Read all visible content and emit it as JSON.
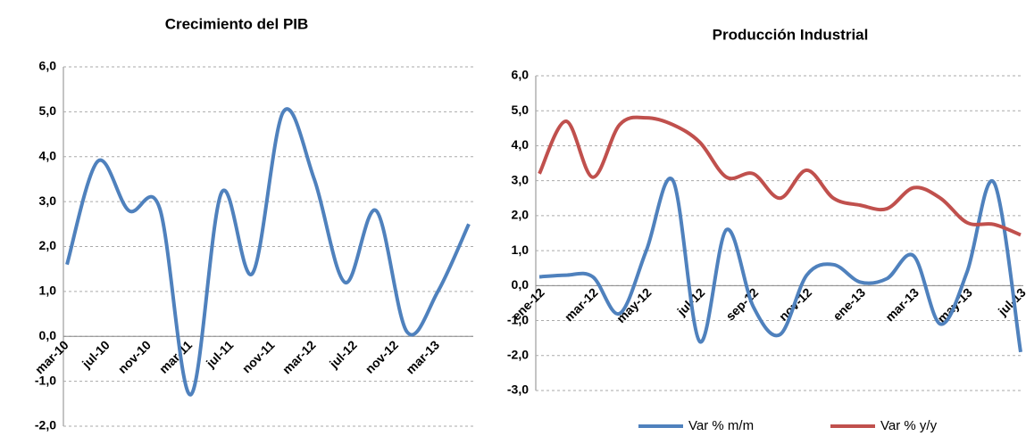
{
  "chart_data": [
    {
      "type": "line",
      "title": "Crecimiento del PIB",
      "color": "#4f81bd",
      "grid": true,
      "negative_tick_color": "#c00000",
      "x": [
        "2010-03",
        "2010-06",
        "2010-09",
        "2010-12",
        "2011-03",
        "2011-06",
        "2011-09",
        "2011-12",
        "2012-03",
        "2012-06",
        "2012-09",
        "2012-12",
        "2013-03",
        "2013-06"
      ],
      "values": [
        1.6,
        3.9,
        2.8,
        2.85,
        -1.3,
        3.2,
        1.4,
        5.0,
        3.5,
        1.2,
        2.8,
        0.1,
        1.0,
        2.5
      ],
      "xticks": [
        {
          "value": "2010-03",
          "label": "mar-10"
        },
        {
          "value": "2010-07",
          "label": "jul-10"
        },
        {
          "value": "2010-11",
          "label": "nov-10"
        },
        {
          "value": "2011-03",
          "label": "mar-11"
        },
        {
          "value": "2011-07",
          "label": "jul-11"
        },
        {
          "value": "2011-11",
          "label": "nov-11"
        },
        {
          "value": "2012-03",
          "label": "mar-12"
        },
        {
          "value": "2012-07",
          "label": "jul-12"
        },
        {
          "value": "2012-11",
          "label": "nov-12"
        },
        {
          "value": "2013-03",
          "label": "mar-13"
        }
      ],
      "ylim": [
        -2,
        6
      ],
      "yticks": [
        {
          "value": -2,
          "label": "-2,0"
        },
        {
          "value": -1,
          "label": "-1,0"
        },
        {
          "value": 0,
          "label": "0,0"
        },
        {
          "value": 1,
          "label": "1,0"
        },
        {
          "value": 2,
          "label": "2,0"
        },
        {
          "value": 3,
          "label": "3,0"
        },
        {
          "value": 4,
          "label": "4,0"
        },
        {
          "value": 5,
          "label": "5,0"
        },
        {
          "value": 6,
          "label": "6,0"
        }
      ]
    },
    {
      "type": "line",
      "title": "Producción Industrial",
      "grid": true,
      "negative_tick_color": "#c00000",
      "legend": "bottom",
      "categories": [
        "ene-12",
        null,
        "mar-12",
        null,
        "may-12",
        null,
        "jul-12",
        null,
        "sep-12",
        null,
        "nov-12",
        null,
        "ene-13",
        null,
        "mar-13",
        null,
        "may-13",
        null,
        "jul-13"
      ],
      "series": [
        {
          "name": "Var % m/m",
          "color": "#4f81bd",
          "values": [
            0.25,
            0.3,
            0.25,
            -0.8,
            1.0,
            3.0,
            -1.6,
            1.6,
            -0.6,
            -1.4,
            0.3,
            0.6,
            0.1,
            0.2,
            0.85,
            -1.1,
            0.4,
            2.95,
            -1.9
          ]
        },
        {
          "name": "Var % y/y",
          "color": "#c0504d",
          "values": [
            3.2,
            4.7,
            3.1,
            4.6,
            4.8,
            4.6,
            4.1,
            3.1,
            3.2,
            2.5,
            3.3,
            2.5,
            2.3,
            2.2,
            2.8,
            2.5,
            1.8,
            1.75,
            1.45
          ]
        }
      ],
      "ylim": [
        -3,
        6
      ],
      "yticks": [
        {
          "value": -3,
          "label": "-3,0"
        },
        {
          "value": -2,
          "label": "-2,0"
        },
        {
          "value": -1,
          "label": "-1,0"
        },
        {
          "value": 0,
          "label": "0,0"
        },
        {
          "value": 1,
          "label": "1,0"
        },
        {
          "value": 2,
          "label": "2,0"
        },
        {
          "value": 3,
          "label": "3,0"
        },
        {
          "value": 4,
          "label": "4,0"
        },
        {
          "value": 5,
          "label": "5,0"
        },
        {
          "value": 6,
          "label": "6,0"
        }
      ]
    }
  ]
}
